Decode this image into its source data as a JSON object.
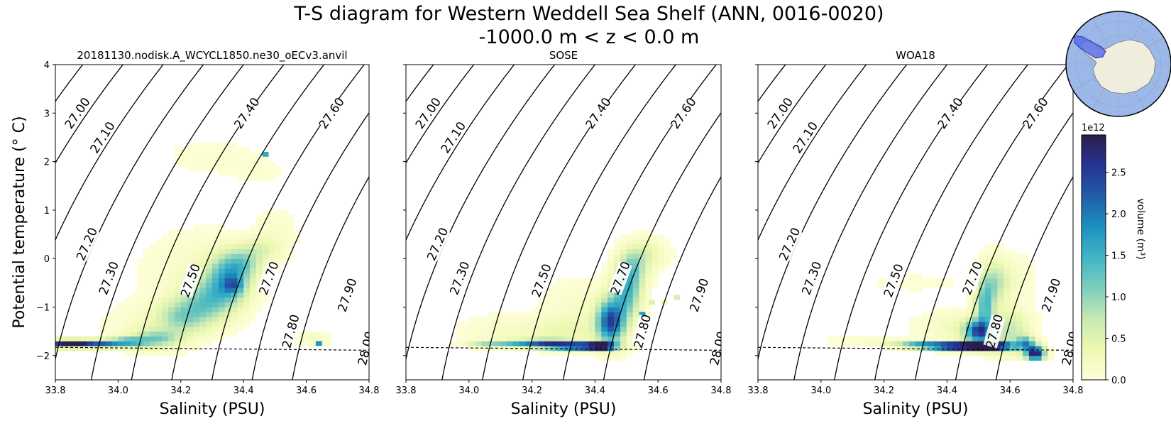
{
  "figure": {
    "title_line1": "T-S diagram for Western Weddell Sea Shelf (ANN, 0016-0020)",
    "title_line2": "-1000.0 m < z < 0.0 m"
  },
  "colorbar": {
    "label": "volume (m³)",
    "exponent_label": "1e12",
    "ticks": [
      0.0,
      0.5,
      1.0,
      1.5,
      2.0,
      2.5
    ],
    "tick_labels": [
      "0.0",
      "0.5",
      "1.0",
      "1.5",
      "2.0",
      "2.5"
    ],
    "max": 2.95,
    "colormap": [
      "#ffffd9",
      "#edf8b1",
      "#c7e9b4",
      "#7fcdbb",
      "#41b6c4",
      "#1d91c0",
      "#225ea8",
      "#253494",
      "#2c1e4c"
    ]
  },
  "inset_map": {
    "ocean_color": "#9bb8e8",
    "land_color": "#f1eddc",
    "region_color": "#5a6ee6"
  },
  "chart_data": [
    {
      "type": "heatmap",
      "title": "20181130.nodisk.A_WCYCL1850.ne30_oECv3.anvil",
      "xlabel": "Salinity (PSU)",
      "ylabel": "Potential temperature (° C)",
      "xlim": [
        33.8,
        34.8
      ],
      "ylim": [
        -2.5,
        4.0
      ],
      "xticks": [
        "33.8",
        "34.0",
        "34.2",
        "34.4",
        "34.6",
        "34.8"
      ],
      "yticks": [
        "−2",
        "−1",
        "0",
        "1",
        "2",
        "3",
        "4"
      ],
      "freezing_line": [
        [
          33.8,
          -1.83
        ],
        [
          34.8,
          -1.89
        ]
      ],
      "density_contours": [
        {
          "sigma": 27.0,
          "label": "27.00",
          "at": [
            33.87,
            3.0
          ]
        },
        {
          "sigma": 27.1,
          "label": "27.10",
          "at": [
            33.95,
            2.5
          ]
        },
        {
          "sigma": 27.2,
          "label": "27.20",
          "at": [
            33.9,
            0.3
          ]
        },
        {
          "sigma": 27.3,
          "label": "27.30",
          "at": [
            33.97,
            -0.4
          ]
        },
        {
          "sigma": 27.4,
          "label": "27.40",
          "at": [
            34.41,
            3.0
          ]
        },
        {
          "sigma": 27.5,
          "label": "27.50",
          "at": [
            34.23,
            -0.45
          ]
        },
        {
          "sigma": 27.6,
          "label": "27.60",
          "at": [
            34.68,
            3.0
          ]
        },
        {
          "sigma": 27.7,
          "label": "27.70",
          "at": [
            34.48,
            -0.4
          ]
        },
        {
          "sigma": 27.8,
          "label": "27.80",
          "at": [
            34.55,
            -1.5
          ]
        },
        {
          "sigma": 27.9,
          "label": "27.90",
          "at": [
            34.73,
            -0.75
          ]
        },
        {
          "sigma": 28.0,
          "label": "28.00",
          "at": [
            34.79,
            -1.85
          ]
        }
      ],
      "blobs": [
        {
          "s": 33.82,
          "t": -1.75,
          "ds": 0.03,
          "dt": 0.05,
          "a": 2.6
        },
        {
          "s": 33.88,
          "t": -1.75,
          "ds": 0.03,
          "dt": 0.05,
          "a": 2.4
        },
        {
          "s": 33.95,
          "t": -1.75,
          "ds": 0.035,
          "dt": 0.05,
          "a": 1.9
        },
        {
          "s": 34.03,
          "t": -1.72,
          "ds": 0.04,
          "dt": 0.07,
          "a": 1.4
        },
        {
          "s": 34.12,
          "t": -1.65,
          "ds": 0.05,
          "dt": 0.12,
          "a": 1.0
        },
        {
          "s": 34.2,
          "t": -1.2,
          "ds": 0.05,
          "dt": 0.25,
          "a": 0.9
        },
        {
          "s": 34.28,
          "t": -0.9,
          "ds": 0.05,
          "dt": 0.3,
          "a": 1.0
        },
        {
          "s": 34.35,
          "t": -0.45,
          "ds": 0.045,
          "dt": 0.35,
          "a": 1.5
        },
        {
          "s": 34.37,
          "t": -0.55,
          "ds": 0.02,
          "dt": 0.12,
          "a": 0.9
        },
        {
          "s": 34.4,
          "t": -0.1,
          "ds": 0.04,
          "dt": 0.2,
          "a": 0.8
        },
        {
          "s": 34.45,
          "t": 0.2,
          "ds": 0.04,
          "dt": 0.15,
          "a": 0.45
        },
        {
          "s": 34.1,
          "t": -1.4,
          "ds": 0.08,
          "dt": 0.3,
          "a": 0.2
        },
        {
          "s": 34.25,
          "t": -0.3,
          "ds": 0.1,
          "dt": 0.5,
          "a": 0.18
        },
        {
          "s": 34.3,
          "t": 2.1,
          "ds": 0.1,
          "dt": 0.25,
          "a": 0.07
        },
        {
          "s": 34.45,
          "t": 1.8,
          "ds": 0.06,
          "dt": 0.2,
          "a": 0.05
        },
        {
          "s": 34.5,
          "t": 0.5,
          "ds": 0.04,
          "dt": 0.3,
          "a": 0.15
        },
        {
          "s": 34.62,
          "t": -1.65,
          "ds": 0.03,
          "dt": 0.1,
          "a": 0.2
        }
      ],
      "spots": [
        {
          "s": 34.47,
          "t": 2.15,
          "v": 1.6
        },
        {
          "s": 34.64,
          "t": -1.75,
          "v": 1.8
        },
        {
          "s": 34.55,
          "t": -1.6,
          "v": 0.35
        }
      ]
    },
    {
      "type": "heatmap",
      "title": "SOSE",
      "xlabel": "Salinity (PSU)",
      "ylabel": "",
      "xlim": [
        33.8,
        34.8
      ],
      "ylim": [
        -2.5,
        4.0
      ],
      "xticks": [
        "33.8",
        "34.0",
        "34.2",
        "34.4",
        "34.6",
        "34.8"
      ],
      "yticks": [],
      "freezing_line": [
        [
          33.8,
          -1.83
        ],
        [
          34.8,
          -1.89
        ]
      ],
      "density_contours": [
        {
          "sigma": 27.0,
          "label": "27.00",
          "at": [
            33.87,
            3.0
          ]
        },
        {
          "sigma": 27.1,
          "label": "27.10",
          "at": [
            33.95,
            2.5
          ]
        },
        {
          "sigma": 27.2,
          "label": "27.20",
          "at": [
            33.9,
            0.3
          ]
        },
        {
          "sigma": 27.3,
          "label": "27.30",
          "at": [
            33.97,
            -0.4
          ]
        },
        {
          "sigma": 27.4,
          "label": "27.40",
          "at": [
            34.41,
            3.0
          ]
        },
        {
          "sigma": 27.5,
          "label": "27.50",
          "at": [
            34.23,
            -0.45
          ]
        },
        {
          "sigma": 27.6,
          "label": "27.60",
          "at": [
            34.68,
            3.0
          ]
        },
        {
          "sigma": 27.7,
          "label": "27.70",
          "at": [
            34.48,
            -0.4
          ]
        },
        {
          "sigma": 27.8,
          "label": "27.80",
          "at": [
            34.55,
            -1.5
          ]
        },
        {
          "sigma": 27.9,
          "label": "27.90",
          "at": [
            34.73,
            -0.75
          ]
        },
        {
          "sigma": 28.0,
          "label": "28.00",
          "at": [
            34.79,
            -1.85
          ]
        }
      ],
      "blobs": [
        {
          "s": 34.35,
          "t": -1.8,
          "ds": 0.06,
          "dt": 0.05,
          "a": 3.0
        },
        {
          "s": 34.42,
          "t": -1.8,
          "ds": 0.03,
          "dt": 0.05,
          "a": 3.0
        },
        {
          "s": 34.25,
          "t": -1.75,
          "ds": 0.05,
          "dt": 0.06,
          "a": 1.9
        },
        {
          "s": 34.15,
          "t": -1.75,
          "ds": 0.05,
          "dt": 0.05,
          "a": 1.2
        },
        {
          "s": 34.05,
          "t": -1.75,
          "ds": 0.04,
          "dt": 0.04,
          "a": 0.7
        },
        {
          "s": 34.45,
          "t": -1.3,
          "ds": 0.03,
          "dt": 0.3,
          "a": 2.4
        },
        {
          "s": 34.5,
          "t": -0.7,
          "ds": 0.03,
          "dt": 0.35,
          "a": 1.4
        },
        {
          "s": 34.52,
          "t": -0.2,
          "ds": 0.03,
          "dt": 0.25,
          "a": 0.9
        },
        {
          "s": 34.56,
          "t": 0.1,
          "ds": 0.04,
          "dt": 0.2,
          "a": 0.45
        },
        {
          "s": 34.3,
          "t": -1.5,
          "ds": 0.08,
          "dt": 0.2,
          "a": 0.35
        },
        {
          "s": 34.35,
          "t": -1.0,
          "ds": 0.07,
          "dt": 0.35,
          "a": 0.15
        },
        {
          "s": 34.1,
          "t": -1.5,
          "ds": 0.08,
          "dt": 0.2,
          "a": 0.15
        }
      ],
      "spots": [
        {
          "s": 34.58,
          "t": -0.9,
          "v": 0.5
        },
        {
          "s": 34.62,
          "t": -0.9,
          "v": 0.35
        },
        {
          "s": 34.66,
          "t": -0.8,
          "v": 0.6
        },
        {
          "s": 34.55,
          "t": -1.15,
          "v": 1.8
        }
      ]
    },
    {
      "type": "heatmap",
      "title": "WOA18",
      "xlabel": "Salinity (PSU)",
      "ylabel": "",
      "xlim": [
        33.8,
        34.8
      ],
      "ylim": [
        -2.5,
        4.0
      ],
      "xticks": [
        "33.8",
        "34.0",
        "34.2",
        "34.4",
        "34.6",
        "34.8"
      ],
      "yticks": [],
      "freezing_line": [
        [
          33.8,
          -1.83
        ],
        [
          34.8,
          -1.89
        ]
      ],
      "density_contours": [
        {
          "sigma": 27.0,
          "label": "27.00",
          "at": [
            33.87,
            3.0
          ]
        },
        {
          "sigma": 27.1,
          "label": "27.10",
          "at": [
            33.95,
            2.5
          ]
        },
        {
          "sigma": 27.2,
          "label": "27.20",
          "at": [
            33.9,
            0.3
          ]
        },
        {
          "sigma": 27.3,
          "label": "27.30",
          "at": [
            33.97,
            -0.4
          ]
        },
        {
          "sigma": 27.4,
          "label": "27.40",
          "at": [
            34.41,
            3.0
          ]
        },
        {
          "sigma": 27.5,
          "label": "27.50",
          "at": [
            34.23,
            -0.45
          ]
        },
        {
          "sigma": 27.6,
          "label": "27.60",
          "at": [
            34.68,
            3.0
          ]
        },
        {
          "sigma": 27.7,
          "label": "27.70",
          "at": [
            34.48,
            -0.4
          ]
        },
        {
          "sigma": 27.8,
          "label": "27.80",
          "at": [
            34.55,
            -1.5
          ]
        },
        {
          "sigma": 27.9,
          "label": "27.90",
          "at": [
            34.73,
            -0.75
          ]
        },
        {
          "sigma": 28.0,
          "label": "28.00",
          "at": [
            34.79,
            -1.85
          ]
        }
      ],
      "blobs": [
        {
          "s": 34.48,
          "t": -1.8,
          "ds": 0.05,
          "dt": 0.06,
          "a": 3.0
        },
        {
          "s": 34.55,
          "t": -1.8,
          "ds": 0.04,
          "dt": 0.06,
          "a": 3.0
        },
        {
          "s": 34.4,
          "t": -1.8,
          "ds": 0.04,
          "dt": 0.05,
          "a": 2.6
        },
        {
          "s": 34.32,
          "t": -1.78,
          "ds": 0.04,
          "dt": 0.05,
          "a": 1.6
        },
        {
          "s": 34.5,
          "t": -1.5,
          "ds": 0.03,
          "dt": 0.15,
          "a": 2.2
        },
        {
          "s": 34.52,
          "t": -1.0,
          "ds": 0.02,
          "dt": 0.35,
          "a": 1.3
        },
        {
          "s": 34.55,
          "t": -0.5,
          "ds": 0.03,
          "dt": 0.3,
          "a": 0.8
        },
        {
          "s": 34.6,
          "t": -1.5,
          "ds": 0.04,
          "dt": 0.3,
          "a": 0.7
        },
        {
          "s": 34.68,
          "t": -1.95,
          "ds": 0.02,
          "dt": 0.1,
          "a": 3.0
        },
        {
          "s": 34.65,
          "t": -1.75,
          "ds": 0.02,
          "dt": 0.1,
          "a": 1.6
        },
        {
          "s": 34.25,
          "t": -1.75,
          "ds": 0.05,
          "dt": 0.04,
          "a": 0.4
        },
        {
          "s": 34.45,
          "t": -1.4,
          "ds": 0.08,
          "dt": 0.2,
          "a": 0.3
        },
        {
          "s": 34.6,
          "t": -0.4,
          "ds": 0.05,
          "dt": 0.3,
          "a": 0.15
        },
        {
          "s": 34.15,
          "t": -1.7,
          "ds": 0.08,
          "dt": 0.08,
          "a": 0.12
        },
        {
          "s": 34.3,
          "t": -0.5,
          "ds": 0.12,
          "dt": 0.15,
          "a": 0.05
        }
      ],
      "spots": [
        {
          "s": 34.58,
          "t": -1.85,
          "v": 2.0
        },
        {
          "s": 34.62,
          "t": -1.85,
          "v": 1.5
        }
      ]
    }
  ]
}
